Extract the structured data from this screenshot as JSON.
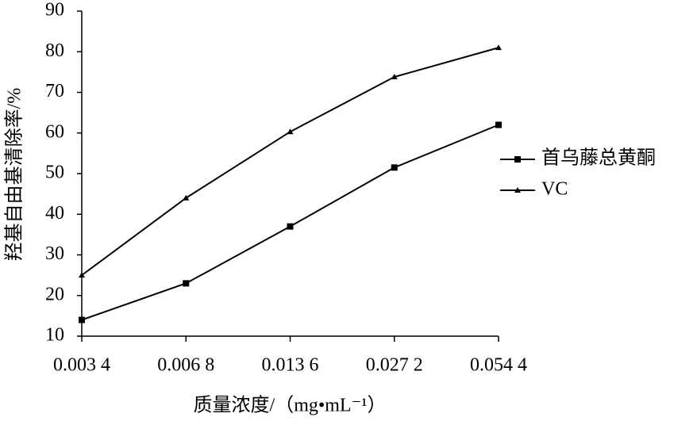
{
  "chart_data": {
    "type": "line",
    "x_label": "质量浓度/（mg•mL⁻¹）",
    "y_label": "羟基自由基清除率/%",
    "categories": [
      "0.003 4",
      "0.006 8",
      "0.013 6",
      "0.027 2",
      "0.054 4"
    ],
    "series": [
      {
        "name": "首乌藤总黄酮",
        "color": "#000000",
        "marker": "square",
        "values": [
          14,
          23,
          37,
          51.5,
          62
        ]
      },
      {
        "name": "VC",
        "color": "#000000",
        "marker": "triangle",
        "values": [
          25,
          44,
          60.3,
          73.8,
          81
        ]
      }
    ],
    "ylim": [
      10,
      90
    ],
    "yticks": [
      10,
      20,
      30,
      40,
      50,
      60,
      70,
      80,
      90
    ],
    "legend": "right"
  }
}
